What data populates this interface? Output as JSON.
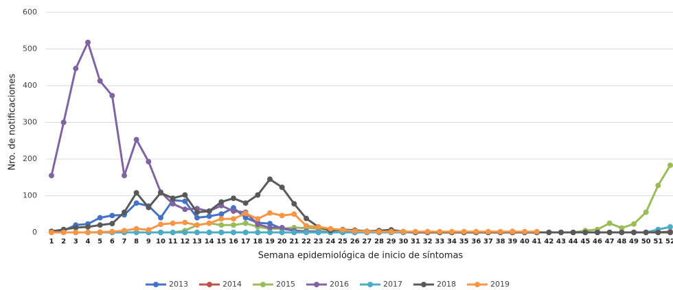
{
  "chart_data": {
    "type": "line",
    "x_label": "Semana epidemiológica de inicio de síntomas",
    "y_label": "Nro. de notificaciones",
    "categories": [
      "1",
      "2",
      "3",
      "4",
      "5",
      "6",
      "7",
      "8",
      "9",
      "10",
      "11",
      "12",
      "13",
      "14",
      "15",
      "16",
      "17",
      "18",
      "19",
      "20",
      "21",
      "22",
      "23",
      "24",
      "25",
      "26",
      "27",
      "28",
      "29",
      "30",
      "31",
      "32",
      "33",
      "34",
      "35",
      "36",
      "37",
      "38",
      "39",
      "40",
      "41",
      "42",
      "43",
      "44",
      "45",
      "46",
      "47",
      "48",
      "49",
      "50",
      "51",
      "52"
    ],
    "ylim": [
      0,
      600
    ],
    "yticks": [
      0,
      100,
      200,
      300,
      400,
      500,
      600
    ],
    "grid": true,
    "legend": "bottom",
    "series": [
      {
        "name": "2013",
        "color": "#4472c4",
        "values": [
          2,
          5,
          20,
          23,
          40,
          46,
          48,
          80,
          72,
          40,
          88,
          85,
          40,
          44,
          50,
          67,
          40,
          26,
          24,
          10,
          5,
          3,
          2,
          0,
          0,
          0,
          0,
          0,
          0,
          0,
          0,
          0,
          0,
          0,
          0,
          0,
          0,
          0,
          0,
          0,
          0,
          0,
          0,
          0,
          0,
          0,
          0,
          0,
          0,
          0,
          0,
          0
        ]
      },
      {
        "name": "2014",
        "color": "#c0504d",
        "values": [
          0,
          0,
          0,
          0,
          0,
          0,
          0,
          0,
          0,
          0,
          0,
          0,
          0,
          0,
          0,
          0,
          0,
          0,
          0,
          0,
          0,
          0,
          0,
          0,
          0,
          0,
          0,
          0,
          0,
          0,
          0,
          0,
          0,
          0,
          0,
          0,
          0,
          0,
          0,
          0,
          0,
          0,
          0,
          0,
          0,
          0,
          0,
          0,
          0,
          0,
          0,
          2
        ]
      },
      {
        "name": "2015",
        "color": "#9bbb59",
        "values": [
          0,
          0,
          0,
          0,
          0,
          0,
          0,
          0,
          0,
          0,
          0,
          5,
          20,
          25,
          20,
          20,
          25,
          15,
          10,
          10,
          13,
          12,
          10,
          5,
          3,
          2,
          1,
          0,
          0,
          0,
          0,
          0,
          0,
          0,
          0,
          0,
          0,
          0,
          3,
          0,
          0,
          0,
          0,
          0,
          5,
          8,
          25,
          12,
          23,
          55,
          128,
          183
        ]
      },
      {
        "name": "2016",
        "color": "#8064a2",
        "values": [
          155,
          300,
          447,
          518,
          413,
          373,
          155,
          253,
          193,
          110,
          78,
          63,
          65,
          58,
          73,
          58,
          55,
          22,
          13,
          13,
          5,
          3,
          2,
          0,
          0,
          0,
          0,
          0,
          0,
          0,
          0,
          0,
          0,
          0,
          0,
          0,
          0,
          0,
          0,
          0,
          0,
          0,
          0,
          0,
          0,
          0,
          0,
          0,
          0,
          0,
          0,
          0
        ]
      },
      {
        "name": "2017",
        "color": "#4bacc6",
        "values": [
          0,
          0,
          0,
          0,
          0,
          0,
          0,
          0,
          0,
          0,
          0,
          0,
          0,
          0,
          0,
          0,
          0,
          0,
          0,
          0,
          0,
          0,
          0,
          0,
          0,
          0,
          0,
          0,
          0,
          0,
          0,
          0,
          0,
          0,
          0,
          0,
          0,
          0,
          0,
          0,
          0,
          0,
          0,
          0,
          0,
          0,
          0,
          0,
          0,
          0,
          8,
          15
        ]
      },
      {
        "name": "2018",
        "color": "#595959",
        "values": [
          3,
          8,
          13,
          15,
          20,
          24,
          55,
          108,
          68,
          108,
          93,
          102,
          55,
          58,
          83,
          93,
          80,
          102,
          145,
          123,
          78,
          38,
          15,
          5,
          8,
          6,
          3,
          5,
          7,
          2,
          0,
          0,
          0,
          0,
          0,
          0,
          0,
          0,
          0,
          0,
          0,
          0,
          0,
          0,
          0,
          0,
          0,
          0,
          0,
          0,
          0,
          0
        ]
      },
      {
        "name": "2019",
        "color": "#f79646",
        "values": [
          0,
          0,
          0,
          0,
          1,
          2,
          5,
          10,
          7,
          22,
          25,
          27,
          20,
          25,
          37,
          37,
          52,
          37,
          53,
          46,
          50,
          18,
          15,
          10,
          7,
          4,
          2,
          2,
          2,
          2,
          2,
          2,
          2,
          2,
          2,
          2,
          2,
          2,
          2,
          2,
          2,
          null,
          null,
          null,
          null,
          null,
          null,
          null,
          null,
          null,
          null,
          null
        ]
      }
    ]
  }
}
